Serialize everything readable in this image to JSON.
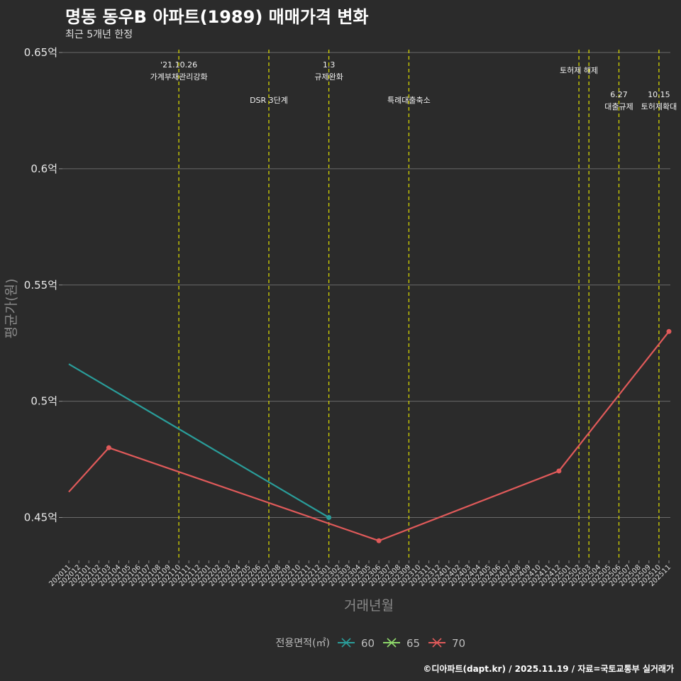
{
  "header": {
    "title": "명동 동우B 아파트(1989) 매매가격 변화",
    "subtitle": "최근 5개년 한정"
  },
  "caption": "©디아파트(dapt.kr) / 2025.11.19 / 자료=국토교통부 실거래가",
  "chart_data": {
    "type": "line",
    "title": "명동 동우B 아파트(1989) 매매가격 변화",
    "subtitle": "최근 5개년 한정",
    "xlabel": "거래년월",
    "ylabel": "평균가(원)",
    "ylim": [
      0.43,
      0.655
    ],
    "yticks": [
      {
        "value": 0.45,
        "label": "0.45억"
      },
      {
        "value": 0.5,
        "label": "0.5억"
      },
      {
        "value": 0.55,
        "label": "0.55억"
      },
      {
        "value": 0.6,
        "label": "0.6억"
      },
      {
        "value": 0.65,
        "label": "0.65억"
      }
    ],
    "categories": [
      "202011",
      "202012",
      "202101",
      "202102",
      "202103",
      "202104",
      "202105",
      "202106",
      "202107",
      "202108",
      "202109",
      "202110",
      "202111",
      "202112",
      "202201",
      "202202",
      "202203",
      "202204",
      "202205",
      "202206",
      "202207",
      "202208",
      "202209",
      "202210",
      "202211",
      "202212",
      "202301",
      "202302",
      "202303",
      "202304",
      "202305",
      "202306",
      "202307",
      "202308",
      "202309",
      "202310",
      "202311",
      "202312",
      "202401",
      "202402",
      "202403",
      "202404",
      "202405",
      "202406",
      "202407",
      "202408",
      "202409",
      "202410",
      "202411",
      "202412",
      "202501",
      "202502",
      "202503",
      "202504",
      "202505",
      "202506",
      "202507",
      "202508",
      "202509",
      "202510",
      "202511"
    ],
    "legend_title": "전용면적(㎡)",
    "legend_position": "bottom",
    "series": [
      {
        "name": "60",
        "color": "#2a9d9a",
        "points": [
          {
            "x": "202011",
            "y": 0.516
          },
          {
            "x": "202301",
            "y": 0.45
          }
        ],
        "markers": [
          "202301"
        ]
      },
      {
        "name": "65",
        "color": "#8fd96b",
        "points": [],
        "markers": []
      },
      {
        "name": "70",
        "color": "#e05a5a",
        "points": [
          {
            "x": "202011",
            "y": 0.461
          },
          {
            "x": "202103",
            "y": 0.48
          },
          {
            "x": "202306",
            "y": 0.44
          },
          {
            "x": "202412",
            "y": 0.47
          },
          {
            "x": "202511",
            "y": 0.53
          }
        ],
        "markers": [
          "202103",
          "202306",
          "202412",
          "202511"
        ]
      }
    ],
    "events": [
      {
        "x": "202110",
        "lines": [
          "'21.10.26",
          "가계부채관리강화"
        ],
        "row": 1
      },
      {
        "x": "202207",
        "lines": [
          "DSR 3단계"
        ],
        "row": 2
      },
      {
        "x": "202301",
        "lines": [
          "1.3",
          "규제완화"
        ],
        "row": 1
      },
      {
        "x": "202309",
        "lines": [
          "특례대출축소"
        ],
        "row": 2
      },
      {
        "x": "202502",
        "lines": [
          "토허제 해제"
        ],
        "row": 1
      },
      {
        "x": "202503",
        "lines": [],
        "row": 1
      },
      {
        "x": "202506",
        "lines": [
          "6.27",
          "대출규제"
        ],
        "row": 3
      },
      {
        "x": "202510",
        "lines": [
          "10.15",
          "토허제확대"
        ],
        "row": 3
      }
    ],
    "event_line_color": "#d4d400",
    "grid": true
  }
}
